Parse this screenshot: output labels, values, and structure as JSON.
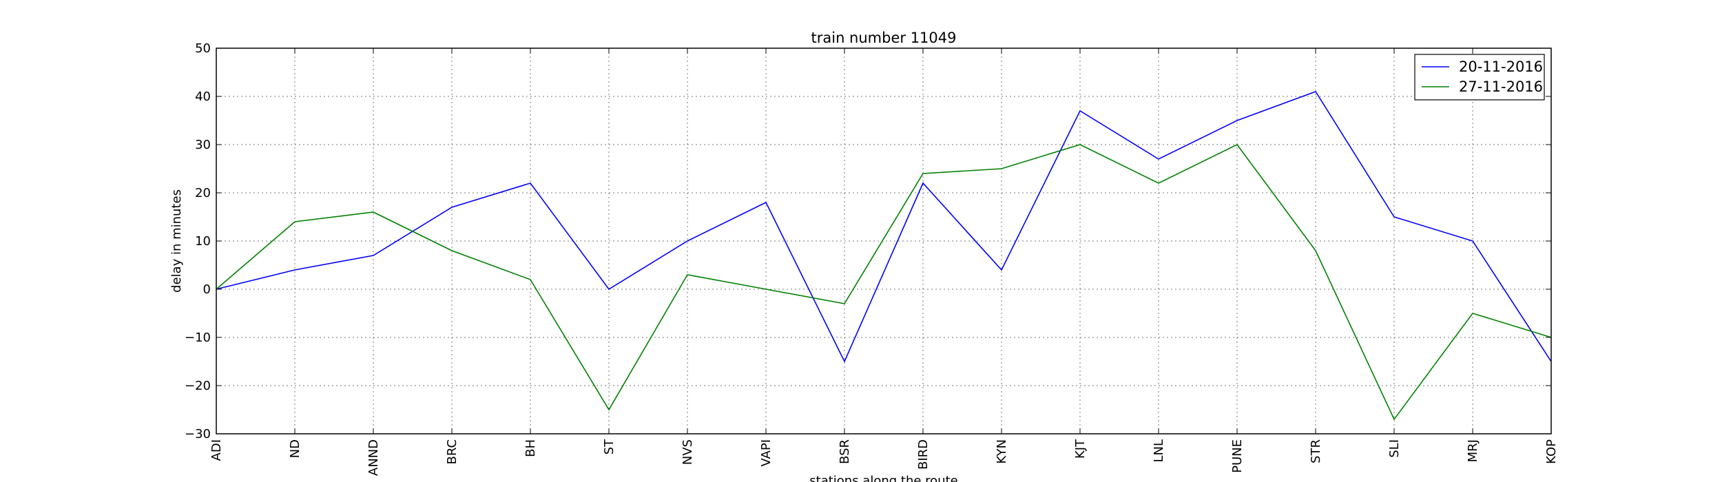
{
  "chart_data": {
    "type": "line",
    "title": "train number 11049",
    "xlabel": "stations along the route",
    "ylabel": "delay in minutes",
    "categories": [
      "ADI",
      "ND",
      "ANND",
      "BRC",
      "BH",
      "ST",
      "NVS",
      "VAPI",
      "BSR",
      "BIRD",
      "KYN",
      "KJT",
      "LNL",
      "PUNE",
      "STR",
      "SLI",
      "MRJ",
      "KOP"
    ],
    "yticks": [
      -30,
      -20,
      -10,
      0,
      10,
      20,
      30,
      40,
      50
    ],
    "ylim": [
      -30,
      50
    ],
    "grid": true,
    "legend_position": "top-right",
    "series": [
      {
        "name": "20-11-2016",
        "color": "#0000ff",
        "values": [
          0,
          4,
          7,
          17,
          22,
          0,
          10,
          18,
          -15,
          22,
          4,
          37,
          27,
          35,
          41,
          15,
          10,
          -15
        ]
      },
      {
        "name": "27-11-2016",
        "color": "#008000",
        "values": [
          0,
          14,
          16,
          8,
          2,
          -25,
          3,
          0,
          -3,
          24,
          25,
          30,
          22,
          30,
          8,
          -27,
          -5,
          -10
        ]
      }
    ]
  }
}
